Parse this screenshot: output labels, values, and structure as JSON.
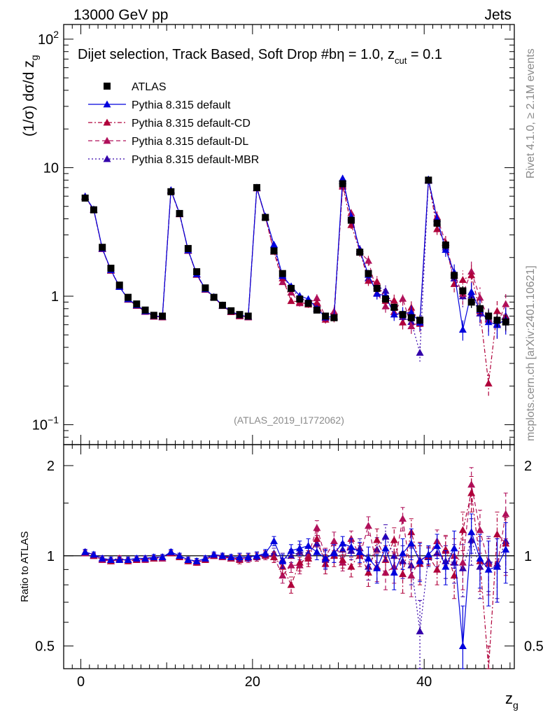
{
  "header": {
    "left": "13000 GeV pp",
    "right": "Jets"
  },
  "side_labels": {
    "rivet": "Rivet 4.1.0, ≥ 2.1M events",
    "mcplots": "mcplots.cern.ch [arXiv:2401.10621]"
  },
  "chart_data": {
    "type": "scatter",
    "title": "Dijet selection, Track Based, Soft Drop #b",
    "title_suffix": "η = 1.0, z",
    "title_sub": "cut",
    "title_tail": " = 0.1",
    "analysis_id": "(ATLAS_2019_I1772062)",
    "xlabel": "z",
    "xlabel_sub": "g",
    "ylabel_main": "(1/σ) dσ/d z",
    "ylabel_main_sub": "g",
    "ylabel_ratio": "Ratio to ATLAS",
    "xlim": [
      -2,
      50.5
    ],
    "ylim_main": [
      0.07,
      130
    ],
    "ylim_ratio": [
      0.42,
      2.35
    ],
    "x_ticks": [
      {
        "v": 0,
        "label": "0"
      },
      {
        "v": 20,
        "label": "20"
      },
      {
        "v": 40,
        "label": "40"
      }
    ],
    "y_ticks_main": [
      {
        "v": 0.1,
        "base": "10",
        "exp": "−1"
      },
      {
        "v": 1,
        "base": "1",
        "exp": ""
      },
      {
        "v": 10,
        "base": "10",
        "exp": ""
      },
      {
        "v": 100,
        "base": "10",
        "exp": "2"
      }
    ],
    "y_ticks_ratio": [
      {
        "v": 0.5,
        "label": "0.5"
      },
      {
        "v": 1,
        "label": "1"
      },
      {
        "v": 2,
        "label": "2"
      }
    ],
    "legend": [
      {
        "name": "ATLAS",
        "color": "#000000",
        "marker": "square",
        "dash": ""
      },
      {
        "name": "Pythia 8.315 default",
        "color": "#0000dd",
        "marker": "triangle",
        "dash": ""
      },
      {
        "name": "Pythia 8.315 default-CD",
        "color": "#b0003a",
        "marker": "triangle",
        "dash": "6,3,2,3"
      },
      {
        "name": "Pythia 8.315 default-DL",
        "color": "#b0105a",
        "marker": "triangle",
        "dash": "6,4"
      },
      {
        "name": "Pythia 8.315 default-MBR",
        "color": "#3300aa",
        "marker": "triangle",
        "dash": "2,3"
      }
    ],
    "x": [
      0.5,
      1.5,
      2.5,
      3.5,
      4.5,
      5.5,
      6.5,
      7.5,
      8.5,
      9.5,
      10.5,
      11.5,
      12.5,
      13.5,
      14.5,
      15.5,
      16.5,
      17.5,
      18.5,
      19.5,
      20.5,
      21.5,
      22.5,
      23.5,
      24.5,
      25.5,
      26.5,
      27.5,
      28.5,
      29.5,
      30.5,
      31.5,
      32.5,
      33.5,
      34.5,
      35.5,
      36.5,
      37.5,
      38.5,
      39.5,
      40.5,
      41.5,
      42.5,
      43.5,
      44.5,
      45.5,
      46.5,
      47.5,
      48.5,
      49.5
    ],
    "data": {
      "values": [
        5.8,
        4.7,
        2.4,
        1.65,
        1.22,
        0.98,
        0.87,
        0.78,
        0.71,
        0.7,
        6.5,
        4.4,
        2.35,
        1.55,
        1.16,
        0.98,
        0.85,
        0.77,
        0.72,
        0.7,
        7.0,
        4.1,
        2.25,
        1.5,
        1.15,
        0.95,
        0.88,
        0.78,
        0.7,
        0.68,
        7.5,
        3.9,
        2.2,
        1.5,
        1.15,
        0.95,
        0.82,
        0.72,
        0.68,
        0.65,
        8.0,
        3.7,
        2.5,
        1.45,
        1.1,
        0.9,
        0.8,
        0.7,
        0.65,
        0.63
      ],
      "errors": [
        0.02,
        0.02,
        0.02,
        0.02,
        0.02,
        0.02,
        0.02,
        0.02,
        0.02,
        0.02,
        0.02,
        0.02,
        0.02,
        0.02,
        0.02,
        0.02,
        0.02,
        0.02,
        0.02,
        0.02,
        0.03,
        0.03,
        0.03,
        0.03,
        0.03,
        0.04,
        0.04,
        0.04,
        0.04,
        0.04,
        0.04,
        0.05,
        0.05,
        0.05,
        0.05,
        0.06,
        0.06,
        0.06,
        0.07,
        0.07,
        0.06,
        0.07,
        0.08,
        0.08,
        0.09,
        0.1,
        0.1,
        0.12,
        0.12,
        0.14
      ]
    },
    "series": [
      {
        "name": "Pythia 8.315 default",
        "ratio": [
          1.03,
          1.01,
          0.98,
          0.97,
          0.97,
          0.97,
          0.98,
          0.98,
          0.99,
          0.99,
          1.03,
          1.0,
          0.97,
          0.96,
          0.98,
          1.01,
          1.0,
          0.99,
          0.99,
          0.99,
          1.0,
          1.02,
          1.12,
          0.96,
          1.04,
          1.06,
          1.08,
          1.03,
          0.98,
          1.02,
          1.1,
          1.07,
          1.03,
          0.98,
          0.91,
          1.06,
          0.88,
          1.02,
          1.1,
          0.96,
          1.01,
          1.08,
          0.92,
          1.06,
          0.5,
          1.2,
          0.98,
          0.9,
          0.92,
          1.05
        ],
        "rerr": [
          0.02,
          0.02,
          0.02,
          0.02,
          0.02,
          0.02,
          0.02,
          0.02,
          0.02,
          0.02,
          0.02,
          0.02,
          0.02,
          0.02,
          0.02,
          0.02,
          0.02,
          0.02,
          0.03,
          0.03,
          0.03,
          0.03,
          0.04,
          0.05,
          0.05,
          0.06,
          0.06,
          0.06,
          0.07,
          0.07,
          0.06,
          0.07,
          0.08,
          0.09,
          0.1,
          0.1,
          0.11,
          0.12,
          0.13,
          0.14,
          0.07,
          0.1,
          0.12,
          0.15,
          0.18,
          0.18,
          0.2,
          0.22,
          0.22,
          0.24
        ]
      },
      {
        "name": "Pythia 8.315 default-CD",
        "ratio": [
          1.03,
          1.0,
          0.98,
          0.96,
          0.98,
          0.96,
          0.97,
          0.98,
          0.98,
          0.99,
          1.02,
          0.99,
          0.96,
          0.95,
          0.97,
          1.0,
          1.0,
          0.98,
          0.97,
          0.99,
          0.99,
          1.01,
          0.99,
          0.92,
          0.8,
          0.95,
          0.98,
          1.14,
          0.94,
          1.0,
          0.97,
          0.92,
          1.02,
          0.88,
          1.13,
          0.97,
          1.13,
          0.87,
          1.2,
          0.94,
          1.0,
          0.9,
          1.05,
          0.86,
          1.22,
          1.62,
          0.96,
          0.3,
          1.18,
          1.1
        ],
        "rerr": [
          0.02,
          0.02,
          0.02,
          0.02,
          0.02,
          0.02,
          0.02,
          0.02,
          0.02,
          0.02,
          0.02,
          0.02,
          0.02,
          0.02,
          0.02,
          0.02,
          0.02,
          0.02,
          0.03,
          0.03,
          0.03,
          0.03,
          0.04,
          0.05,
          0.05,
          0.06,
          0.06,
          0.07,
          0.07,
          0.08,
          0.06,
          0.07,
          0.08,
          0.09,
          0.1,
          0.11,
          0.11,
          0.12,
          0.13,
          0.14,
          0.07,
          0.1,
          0.12,
          0.14,
          0.18,
          0.22,
          0.2,
          0.2,
          0.22,
          0.24
        ]
      },
      {
        "name": "Pythia 8.315 default-DL",
        "ratio": [
          1.02,
          1.0,
          0.97,
          0.96,
          0.97,
          0.97,
          0.97,
          0.97,
          0.98,
          0.98,
          1.02,
          0.99,
          0.97,
          0.95,
          0.97,
          1.0,
          0.99,
          0.98,
          0.98,
          0.98,
          0.99,
          1.0,
          0.99,
          0.86,
          0.93,
          0.93,
          1.0,
          1.24,
          0.99,
          1.12,
          0.95,
          1.14,
          1.0,
          1.26,
          0.92,
          0.88,
          0.92,
          1.33,
          0.86,
          0.97,
          1.0,
          1.12,
          1.04,
          1.0,
          0.95,
          1.73,
          1.22,
          0.94,
          0.92,
          1.38
        ],
        "rerr": [
          0.02,
          0.02,
          0.02,
          0.02,
          0.02,
          0.02,
          0.02,
          0.02,
          0.02,
          0.02,
          0.02,
          0.02,
          0.02,
          0.02,
          0.02,
          0.02,
          0.02,
          0.02,
          0.03,
          0.03,
          0.03,
          0.03,
          0.04,
          0.05,
          0.05,
          0.06,
          0.06,
          0.07,
          0.07,
          0.08,
          0.06,
          0.07,
          0.08,
          0.09,
          0.1,
          0.11,
          0.11,
          0.12,
          0.13,
          0.14,
          0.07,
          0.1,
          0.12,
          0.14,
          0.18,
          0.24,
          0.2,
          0.2,
          0.22,
          0.24
        ]
      },
      {
        "name": "Pythia 8.315 default-MBR",
        "ratio": [
          1.03,
          1.0,
          0.97,
          0.97,
          0.98,
          0.97,
          0.98,
          0.98,
          0.98,
          0.99,
          1.03,
          1.0,
          0.97,
          0.96,
          0.98,
          1.0,
          0.99,
          0.98,
          0.99,
          0.99,
          1.0,
          1.01,
          1.02,
          0.97,
          1.0,
          1.03,
          1.02,
          1.1,
          0.97,
          1.03,
          1.05,
          1.04,
          1.06,
          0.92,
          1.05,
          1.16,
          1.0,
          0.96,
          0.93,
          0.56,
          0.99,
          1.02,
          0.96,
          0.95,
          0.91,
          1.13,
          0.92,
          0.96,
          0.94,
          1.12
        ],
        "rerr": [
          0.02,
          0.02,
          0.02,
          0.02,
          0.02,
          0.02,
          0.02,
          0.02,
          0.02,
          0.02,
          0.02,
          0.02,
          0.02,
          0.02,
          0.02,
          0.02,
          0.02,
          0.02,
          0.03,
          0.03,
          0.03,
          0.03,
          0.04,
          0.05,
          0.05,
          0.06,
          0.06,
          0.07,
          0.07,
          0.08,
          0.06,
          0.07,
          0.08,
          0.09,
          0.1,
          0.11,
          0.11,
          0.12,
          0.13,
          0.15,
          0.07,
          0.1,
          0.12,
          0.14,
          0.18,
          0.2,
          0.2,
          0.2,
          0.22,
          0.24
        ]
      }
    ]
  }
}
